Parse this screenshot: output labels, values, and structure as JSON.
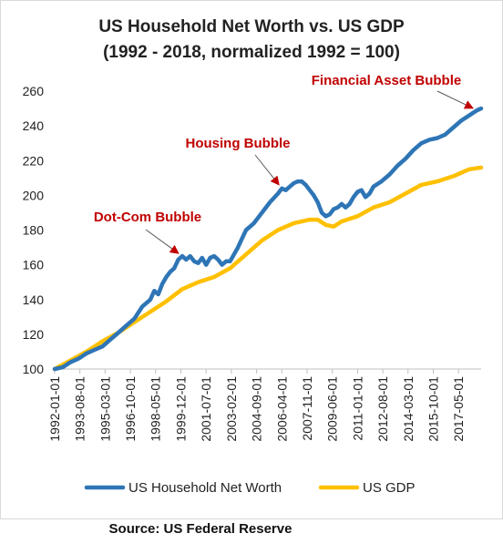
{
  "chart_data": {
    "type": "line",
    "title_line1": "US Household Net Worth vs. US GDP",
    "title_line2": "(1992 - 2018, normalized 1992 = 100)",
    "xlabel": "",
    "ylabel": "",
    "ylim": [
      100,
      260
    ],
    "y_ticks": [
      "100",
      "120",
      "140",
      "160",
      "180",
      "200",
      "220",
      "240",
      "260"
    ],
    "x_tick_labels": [
      "1992-01-01",
      "1993-08-01",
      "1995-03-01",
      "1996-10-01",
      "1998-05-01",
      "1999-12-01",
      "2001-07-01",
      "2003-02-01",
      "2004-09-01",
      "2006-04-01",
      "2007-11-01",
      "2009-06-01",
      "2011-01-01",
      "2012-08-01",
      "2014-03-01",
      "2015-10-01",
      "2017-05-01"
    ],
    "grid": false,
    "legend_position": "bottom",
    "series": [
      {
        "name": "US Household Net Worth",
        "color": "#2E75B6",
        "points": [
          [
            "1992-01-01",
            100
          ],
          [
            "1992-07-01",
            101
          ],
          [
            "1993-01-01",
            104
          ],
          [
            "1993-07-01",
            106
          ],
          [
            "1994-01-01",
            109
          ],
          [
            "1994-07-01",
            111
          ],
          [
            "1995-01-01",
            113
          ],
          [
            "1995-07-01",
            117
          ],
          [
            "1996-01-01",
            121
          ],
          [
            "1996-07-01",
            125
          ],
          [
            "1997-01-01",
            129
          ],
          [
            "1997-07-01",
            136
          ],
          [
            "1998-01-01",
            140
          ],
          [
            "1998-04-01",
            145
          ],
          [
            "1998-07-01",
            143
          ],
          [
            "1998-10-01",
            149
          ],
          [
            "1999-01-01",
            153
          ],
          [
            "1999-04-01",
            156
          ],
          [
            "1999-07-01",
            158
          ],
          [
            "1999-10-01",
            163
          ],
          [
            "2000-01-01",
            165
          ],
          [
            "2000-04-01",
            163
          ],
          [
            "2000-07-01",
            165
          ],
          [
            "2000-10-01",
            162
          ],
          [
            "2001-01-01",
            161
          ],
          [
            "2001-04-01",
            164
          ],
          [
            "2001-07-01",
            160
          ],
          [
            "2001-10-01",
            164
          ],
          [
            "2002-01-01",
            165
          ],
          [
            "2002-04-01",
            163
          ],
          [
            "2002-07-01",
            160
          ],
          [
            "2002-10-01",
            162
          ],
          [
            "2003-01-01",
            162
          ],
          [
            "2003-04-01",
            166
          ],
          [
            "2003-07-01",
            170
          ],
          [
            "2003-10-01",
            175
          ],
          [
            "2004-01-01",
            180
          ],
          [
            "2004-07-01",
            184
          ],
          [
            "2005-01-01",
            190
          ],
          [
            "2005-07-01",
            196
          ],
          [
            "2006-01-01",
            201
          ],
          [
            "2006-04-01",
            204
          ],
          [
            "2006-07-01",
            203
          ],
          [
            "2006-10-01",
            205
          ],
          [
            "2007-01-01",
            207
          ],
          [
            "2007-04-01",
            208
          ],
          [
            "2007-07-01",
            208
          ],
          [
            "2007-10-01",
            206
          ],
          [
            "2008-01-01",
            203
          ],
          [
            "2008-04-01",
            200
          ],
          [
            "2008-07-01",
            196
          ],
          [
            "2008-10-01",
            190
          ],
          [
            "2009-01-01",
            188
          ],
          [
            "2009-04-01",
            189
          ],
          [
            "2009-07-01",
            192
          ],
          [
            "2009-10-01",
            193
          ],
          [
            "2010-01-01",
            195
          ],
          [
            "2010-04-01",
            193
          ],
          [
            "2010-07-01",
            195
          ],
          [
            "2010-10-01",
            199
          ],
          [
            "2011-01-01",
            202
          ],
          [
            "2011-04-01",
            203
          ],
          [
            "2011-07-01",
            199
          ],
          [
            "2011-10-01",
            201
          ],
          [
            "2012-01-01",
            205
          ],
          [
            "2012-07-01",
            208
          ],
          [
            "2013-01-01",
            212
          ],
          [
            "2013-07-01",
            217
          ],
          [
            "2014-01-01",
            221
          ],
          [
            "2014-07-01",
            226
          ],
          [
            "2015-01-01",
            230
          ],
          [
            "2015-07-01",
            232
          ],
          [
            "2016-01-01",
            233
          ],
          [
            "2016-07-01",
            235
          ],
          [
            "2017-01-01",
            239
          ],
          [
            "2017-07-01",
            243
          ],
          [
            "2018-01-01",
            246
          ],
          [
            "2018-07-01",
            249
          ],
          [
            "2018-10-01",
            250
          ]
        ]
      },
      {
        "name": "US GDP",
        "color": "#FFC000",
        "points": [
          [
            "1992-01-01",
            100
          ],
          [
            "1993-01-01",
            105
          ],
          [
            "1994-01-01",
            110
          ],
          [
            "1995-01-01",
            116
          ],
          [
            "1996-01-01",
            121
          ],
          [
            "1997-01-01",
            127
          ],
          [
            "1998-01-01",
            133
          ],
          [
            "1999-01-01",
            139
          ],
          [
            "2000-01-01",
            146
          ],
          [
            "2001-01-01",
            150
          ],
          [
            "2002-01-01",
            153
          ],
          [
            "2003-01-01",
            158
          ],
          [
            "2004-01-01",
            166
          ],
          [
            "2005-01-01",
            174
          ],
          [
            "2006-01-01",
            180
          ],
          [
            "2007-01-01",
            184
          ],
          [
            "2008-01-01",
            186
          ],
          [
            "2008-07-01",
            186
          ],
          [
            "2009-01-01",
            183
          ],
          [
            "2009-07-01",
            182
          ],
          [
            "2010-01-01",
            185
          ],
          [
            "2011-01-01",
            188
          ],
          [
            "2012-01-01",
            193
          ],
          [
            "2013-01-01",
            196
          ],
          [
            "2014-01-01",
            201
          ],
          [
            "2015-01-01",
            206
          ],
          [
            "2016-01-01",
            208
          ],
          [
            "2017-01-01",
            211
          ],
          [
            "2018-01-01",
            215
          ],
          [
            "2018-10-01",
            216
          ]
        ]
      }
    ],
    "annotations": [
      {
        "text": "Financial Asset Bubble",
        "color": "#C00000",
        "target": [
          "2018-07-01",
          249
        ]
      },
      {
        "text": "Housing Bubble",
        "color": "#C00000",
        "target": [
          "2006-04-01",
          204
        ]
      },
      {
        "text": "Dot-Com Bubble",
        "color": "#C00000",
        "target": [
          "2000-01-01",
          165
        ]
      }
    ]
  },
  "source_text": "Source: US Federal Reserve"
}
